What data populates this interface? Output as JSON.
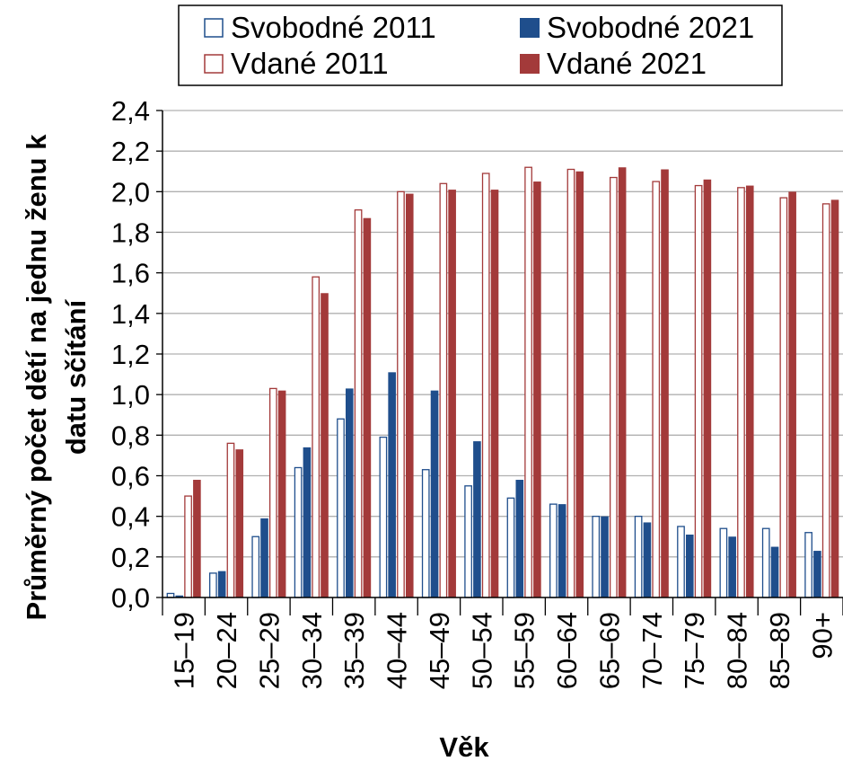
{
  "chart_data": {
    "type": "bar",
    "title": "",
    "xlabel": "Věk",
    "ylabel_line1": "Průměrný počet dětí na jednu ženu k",
    "ylabel_line2": "datu sčítání",
    "ylim": [
      0,
      2.4
    ],
    "y_ticks": [
      "0,0",
      "0,2",
      "0,4",
      "0,6",
      "0,8",
      "1,0",
      "1,2",
      "1,4",
      "1,6",
      "1,8",
      "2,0",
      "2,2",
      "2,4"
    ],
    "grid": true,
    "legend_position": "top",
    "categories": [
      "15–19",
      "20–24",
      "25–29",
      "30–34",
      "35–39",
      "40–44",
      "45–49",
      "50–54",
      "55–59",
      "60–64",
      "65–69",
      "70–74",
      "75–79",
      "80–84",
      "85–89",
      "90+"
    ],
    "series": [
      {
        "name": "Svobodné 2011",
        "style": "outline",
        "color": "#1f4e8c",
        "values": [
          0.02,
          0.12,
          0.3,
          0.64,
          0.88,
          0.79,
          0.63,
          0.55,
          0.49,
          0.46,
          0.4,
          0.4,
          0.35,
          0.34,
          0.34,
          0.32
        ]
      },
      {
        "name": "Svobodné 2021",
        "style": "filled",
        "color": "#1f4e8c",
        "values": [
          0.01,
          0.13,
          0.39,
          0.74,
          1.03,
          1.11,
          1.02,
          0.77,
          0.58,
          0.46,
          0.4,
          0.37,
          0.31,
          0.3,
          0.25,
          0.23
        ]
      },
      {
        "name": "Vdané 2011",
        "style": "outline",
        "color": "#a33a3a",
        "values": [
          0.5,
          0.76,
          1.03,
          1.58,
          1.91,
          2.0,
          2.04,
          2.09,
          2.12,
          2.11,
          2.07,
          2.05,
          2.03,
          2.02,
          1.97,
          1.94
        ]
      },
      {
        "name": "Vdané 2021",
        "style": "filled",
        "color": "#a33a3a",
        "values": [
          0.58,
          0.73,
          1.02,
          1.5,
          1.87,
          1.99,
          2.01,
          2.01,
          2.05,
          2.1,
          2.12,
          2.11,
          2.06,
          2.03,
          2.0,
          1.96
        ]
      }
    ]
  }
}
